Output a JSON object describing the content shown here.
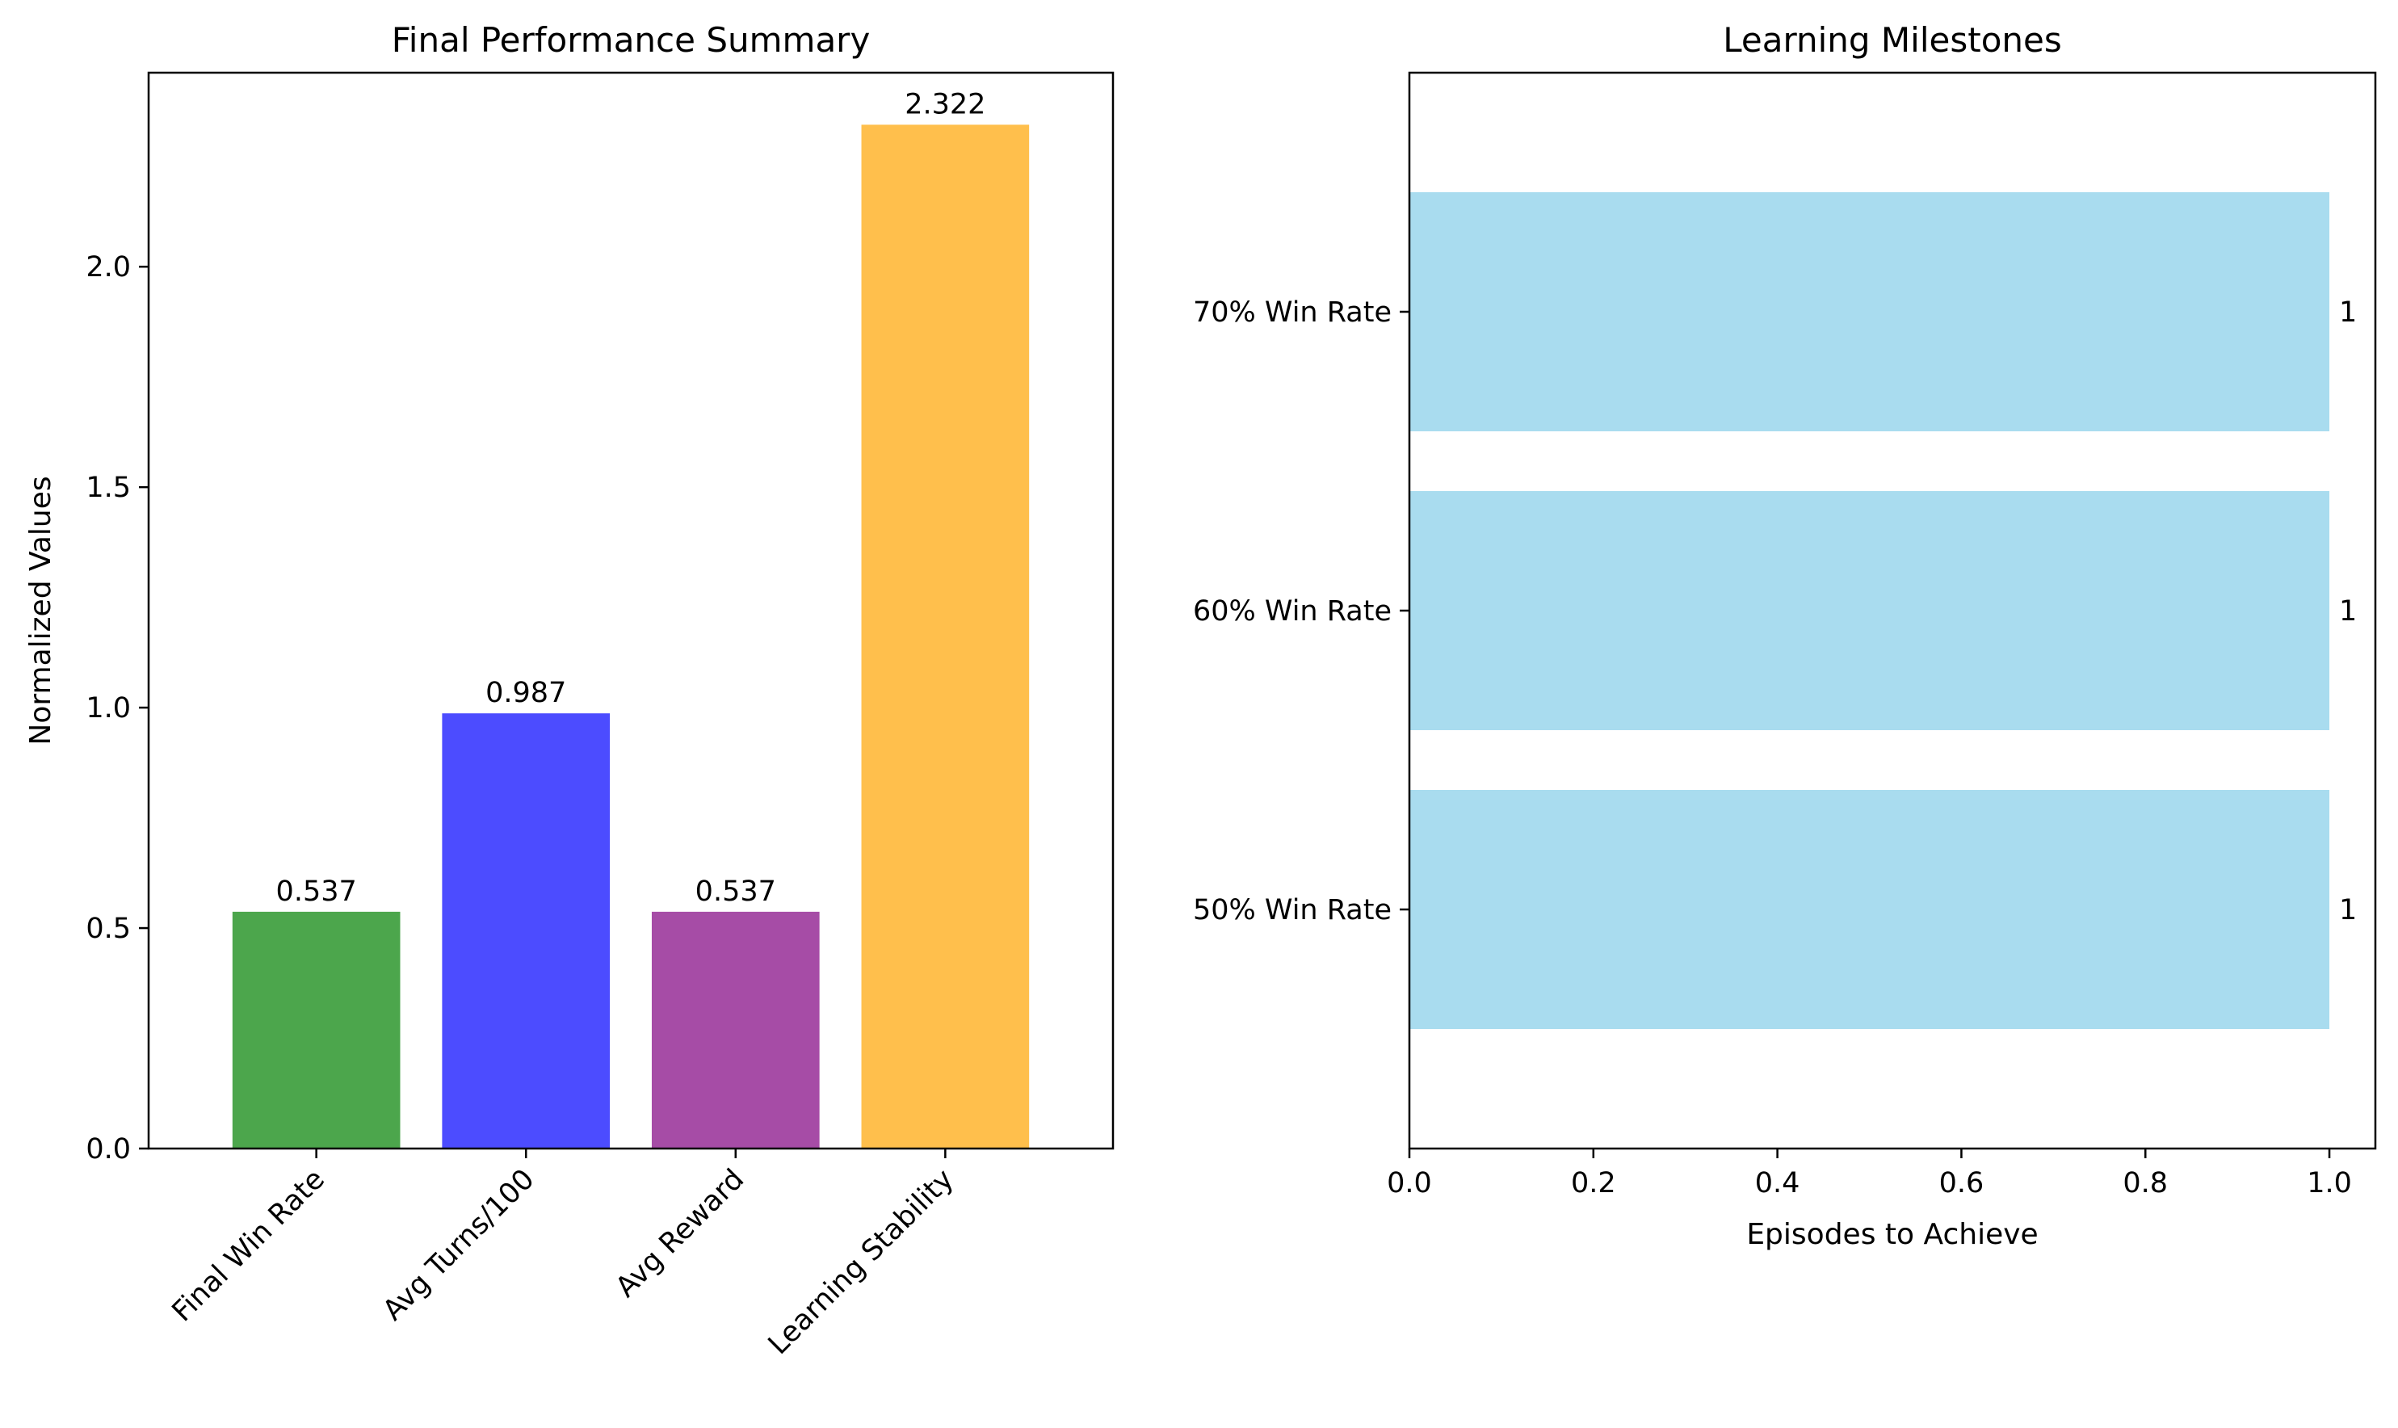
{
  "chart_data": [
    {
      "type": "bar",
      "title": "Final Performance Summary",
      "xlabel": "",
      "ylabel": "Normalized Values",
      "categories": [
        "Final Win Rate",
        "Avg Turns/100",
        "Avg Reward",
        "Learning Stability"
      ],
      "values": [
        0.537,
        0.987,
        0.537,
        2.322
      ],
      "value_labels": [
        "0.537",
        "0.987",
        "0.537",
        "2.322"
      ],
      "colors": [
        "#4ca64c",
        "#4c4cff",
        "#a64ca6",
        "#ffbf4c"
      ],
      "ylim": [
        0,
        2.44
      ],
      "yticks": [
        0.0,
        0.5,
        1.0,
        1.5,
        2.0
      ],
      "ytick_labels": [
        "0.0",
        "0.5",
        "1.0",
        "1.5",
        "2.0"
      ],
      "grid": false,
      "xtick_rotation_deg": 45
    },
    {
      "type": "bar",
      "orientation": "horizontal",
      "title": "Learning Milestones",
      "xlabel": "Episodes to Achieve",
      "ylabel": "",
      "categories": [
        "50% Win Rate",
        "60% Win Rate",
        "70% Win Rate"
      ],
      "values": [
        1,
        1,
        1
      ],
      "value_labels": [
        "1",
        "1",
        "1"
      ],
      "color": "#a9dcef",
      "xlim": [
        0,
        1.05
      ],
      "xticks": [
        0.0,
        0.2,
        0.4,
        0.6,
        0.8,
        1.0
      ],
      "xtick_labels": [
        "0.0",
        "0.2",
        "0.4",
        "0.6",
        "0.8",
        "1.0"
      ],
      "grid": false
    }
  ]
}
